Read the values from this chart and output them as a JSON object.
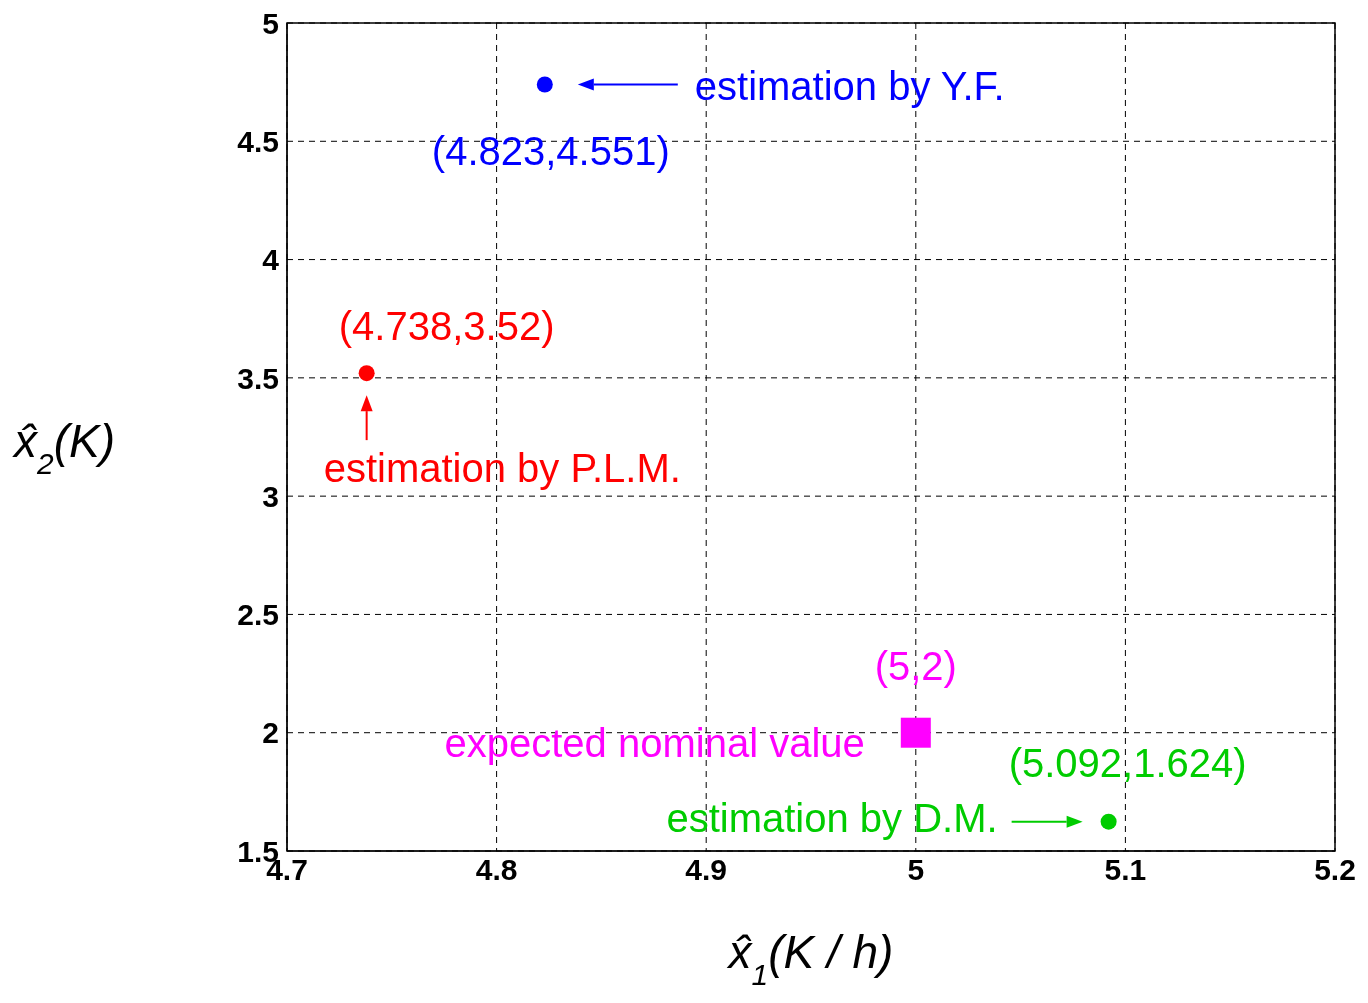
{
  "chart_data": {
    "type": "scatter",
    "xlabel": "x̂$_{1}$(K / h)",
    "ylabel": "x̂$_{2}$(K)",
    "xlim": [
      4.7,
      5.2
    ],
    "xticks": [
      4.7,
      4.8,
      4.9,
      5,
      5.1,
      5.2
    ],
    "ylim": [
      1.5,
      5
    ],
    "yticks": [
      1.5,
      2,
      2.5,
      3,
      3.5,
      4,
      4.5,
      5
    ],
    "grid": true,
    "series": [
      {
        "name": "estimation by Y.F.",
        "color": "#0000ff",
        "marker": "circle",
        "x": [
          4.823
        ],
        "values": [
          4.74
        ]
      },
      {
        "name": "estimation by P.L.M.",
        "color": "#ff0000",
        "marker": "circle",
        "x": [
          4.738
        ],
        "values": [
          3.52
        ]
      },
      {
        "name": "expected nominal value",
        "color": "#ff00ff",
        "marker": "square",
        "x": [
          5
        ],
        "values": [
          2
        ]
      },
      {
        "name": "estimation by D.M.",
        "color": "#00cc00",
        "marker": "circle",
        "x": [
          5.092
        ],
        "values": [
          1.624
        ]
      }
    ],
    "annotations": [
      {
        "text": "(4.823,4.551)",
        "x": 4.823,
        "y": 4.74
      },
      {
        "text": "(4.738,3.52)",
        "x": 4.738,
        "y": 3.52
      },
      {
        "text": "(5,2)",
        "x": 5,
        "y": 2
      },
      {
        "text": "(5.092,1.624)",
        "x": 5.092,
        "y": 1.624
      }
    ]
  }
}
